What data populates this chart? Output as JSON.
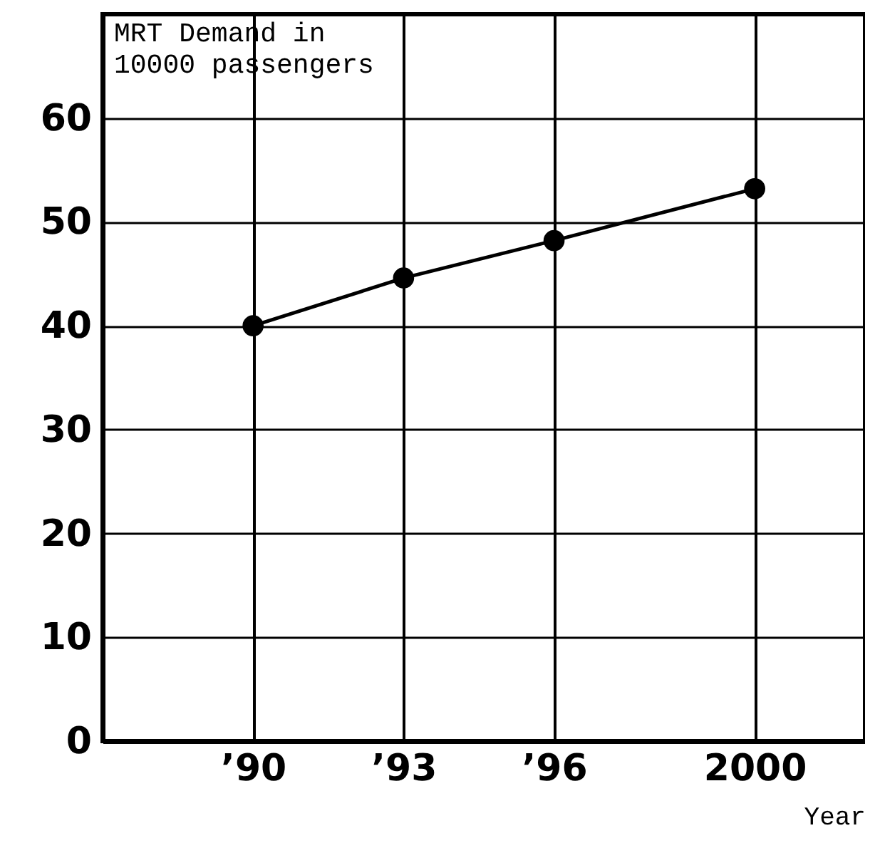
{
  "chart_data": {
    "type": "line",
    "ylabel": "MRT Demand in\n10000 passengers",
    "xlabel": "Year",
    "x": [
      1990,
      1993,
      1996,
      2000
    ],
    "series": [
      {
        "color": "#000000",
        "values": [
          40,
          44.6,
          48.2,
          53.2
        ]
      }
    ],
    "xlim": [
      1987,
      2002.2
    ],
    "xticks": [
      {
        "value": 1990,
        "label": "’90"
      },
      {
        "value": 1993,
        "label": "’93"
      },
      {
        "value": 1996,
        "label": "’96"
      },
      2000
    ],
    "ylim": [
      0,
      70
    ],
    "yticks": [
      0,
      10,
      20,
      30,
      40,
      50,
      60
    ],
    "grid": true,
    "marker": "circle",
    "line_style": "solid"
  }
}
